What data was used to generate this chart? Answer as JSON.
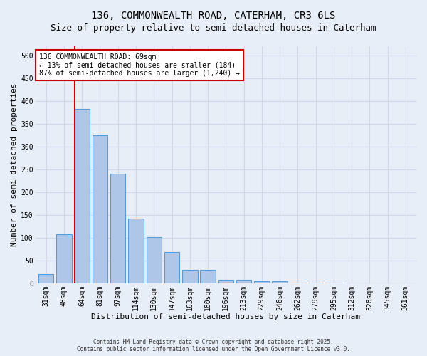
{
  "title_line1": "136, COMMONWEALTH ROAD, CATERHAM, CR3 6LS",
  "title_line2": "Size of property relative to semi-detached houses in Caterham",
  "xlabel": "Distribution of semi-detached houses by size in Caterham",
  "ylabel": "Number of semi-detached properties",
  "footnote": "Contains HM Land Registry data © Crown copyright and database right 2025.\nContains public sector information licensed under the Open Government Licence v3.0.",
  "categories": [
    "31sqm",
    "48sqm",
    "64sqm",
    "81sqm",
    "97sqm",
    "114sqm",
    "130sqm",
    "147sqm",
    "163sqm",
    "180sqm",
    "196sqm",
    "213sqm",
    "229sqm",
    "246sqm",
    "262sqm",
    "279sqm",
    "295sqm",
    "312sqm",
    "328sqm",
    "345sqm",
    "361sqm"
  ],
  "values": [
    20,
    107,
    383,
    325,
    240,
    142,
    101,
    68,
    30,
    30,
    8,
    8,
    5,
    5,
    2,
    2,
    1,
    0,
    0,
    0,
    0
  ],
  "bar_color": "#aec6e8",
  "bar_edge_color": "#5b9bd5",
  "grid_color": "#d0d8e8",
  "background_color": "#e8eef8",
  "vline_color": "#cc0000",
  "annotation_text": "136 COMMONWEALTH ROAD: 69sqm\n← 13% of semi-detached houses are smaller (184)\n87% of semi-detached houses are larger (1,240) →",
  "annotation_box_color": "#ffffff",
  "annotation_box_edge": "#cc0000",
  "ylim": [
    0,
    520
  ],
  "yticks": [
    0,
    50,
    100,
    150,
    200,
    250,
    300,
    350,
    400,
    450,
    500
  ],
  "title_fontsize": 10,
  "subtitle_fontsize": 9,
  "tick_fontsize": 7,
  "label_fontsize": 8,
  "annot_fontsize": 7,
  "footnote_fontsize": 5.5
}
